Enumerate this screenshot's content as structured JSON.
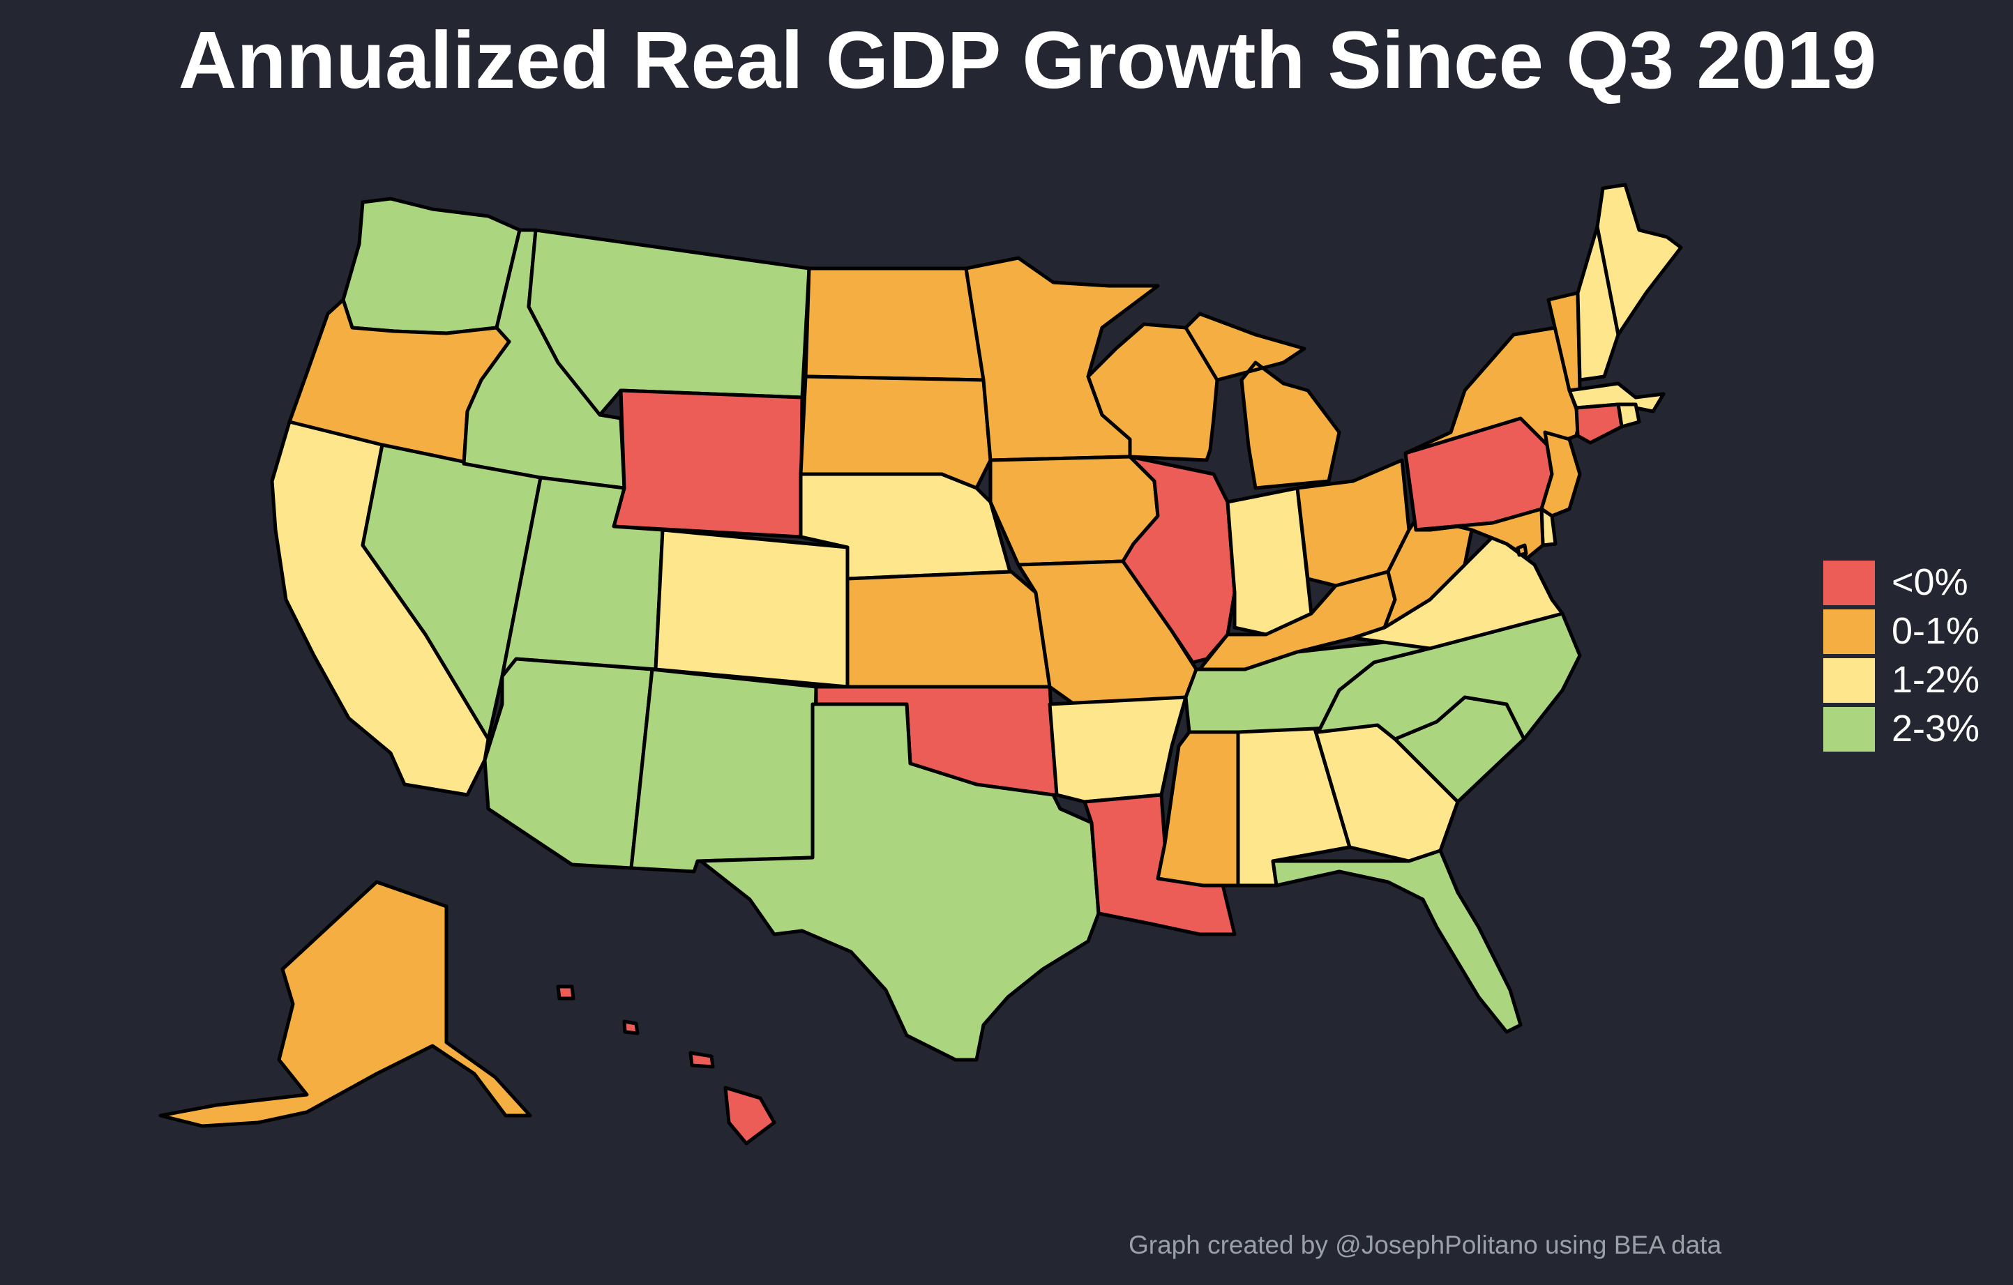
{
  "title": "Annualized Real GDP Growth Since Q3 2019",
  "credit": "Graph created by @JosephPolitano using BEA data",
  "legend": {
    "items": [
      {
        "label": "<0%",
        "color": "#ec5d57"
      },
      {
        "label": "0-1%",
        "color": "#f5ae41"
      },
      {
        "label": "1-2%",
        "color": "#fde68b"
      },
      {
        "label": "2-3%",
        "color": "#acd57f"
      }
    ]
  },
  "colors": {
    "background": "#242731",
    "border": "#000000",
    "title": "#ffffff",
    "credit": "#9aa0a8"
  },
  "states": [
    {
      "abbr": "WA",
      "category": "2-3%"
    },
    {
      "abbr": "OR",
      "category": "0-1%"
    },
    {
      "abbr": "CA",
      "category": "1-2%"
    },
    {
      "abbr": "NV",
      "category": "2-3%"
    },
    {
      "abbr": "ID",
      "category": "2-3%"
    },
    {
      "abbr": "MT",
      "category": "2-3%"
    },
    {
      "abbr": "WY",
      "category": "<0%"
    },
    {
      "abbr": "UT",
      "category": "2-3%"
    },
    {
      "abbr": "AZ",
      "category": "2-3%"
    },
    {
      "abbr": "CO",
      "category": "1-2%"
    },
    {
      "abbr": "NM",
      "category": "2-3%"
    },
    {
      "abbr": "ND",
      "category": "0-1%"
    },
    {
      "abbr": "SD",
      "category": "0-1%"
    },
    {
      "abbr": "NE",
      "category": "1-2%"
    },
    {
      "abbr": "KS",
      "category": "0-1%"
    },
    {
      "abbr": "OK",
      "category": "<0%"
    },
    {
      "abbr": "TX",
      "category": "2-3%"
    },
    {
      "abbr": "MN",
      "category": "0-1%"
    },
    {
      "abbr": "IA",
      "category": "0-1%"
    },
    {
      "abbr": "MO",
      "category": "0-1%"
    },
    {
      "abbr": "AR",
      "category": "1-2%"
    },
    {
      "abbr": "LA",
      "category": "<0%"
    },
    {
      "abbr": "WI",
      "category": "0-1%"
    },
    {
      "abbr": "IL",
      "category": "<0%"
    },
    {
      "abbr": "MI",
      "category": "0-1%"
    },
    {
      "abbr": "IN",
      "category": "1-2%"
    },
    {
      "abbr": "OH",
      "category": "0-1%"
    },
    {
      "abbr": "KY",
      "category": "0-1%"
    },
    {
      "abbr": "TN",
      "category": "2-3%"
    },
    {
      "abbr": "MS",
      "category": "0-1%"
    },
    {
      "abbr": "AL",
      "category": "1-2%"
    },
    {
      "abbr": "GA",
      "category": "1-2%"
    },
    {
      "abbr": "FL",
      "category": "2-3%"
    },
    {
      "abbr": "SC",
      "category": "2-3%"
    },
    {
      "abbr": "NC",
      "category": "2-3%"
    },
    {
      "abbr": "VA",
      "category": "1-2%"
    },
    {
      "abbr": "WV",
      "category": "0-1%"
    },
    {
      "abbr": "PA",
      "category": "<0%"
    },
    {
      "abbr": "NY",
      "category": "0-1%"
    },
    {
      "abbr": "VT",
      "category": "0-1%"
    },
    {
      "abbr": "NH",
      "category": "1-2%"
    },
    {
      "abbr": "ME",
      "category": "1-2%"
    },
    {
      "abbr": "MA",
      "category": "1-2%"
    },
    {
      "abbr": "RI",
      "category": "1-2%"
    },
    {
      "abbr": "CT",
      "category": "<0%"
    },
    {
      "abbr": "NJ",
      "category": "0-1%"
    },
    {
      "abbr": "DE",
      "category": "1-2%"
    },
    {
      "abbr": "MD",
      "category": "0-1%"
    },
    {
      "abbr": "DC",
      "category": "0-1%"
    },
    {
      "abbr": "AK",
      "category": "0-1%"
    },
    {
      "abbr": "HI",
      "category": "<0%"
    }
  ]
}
